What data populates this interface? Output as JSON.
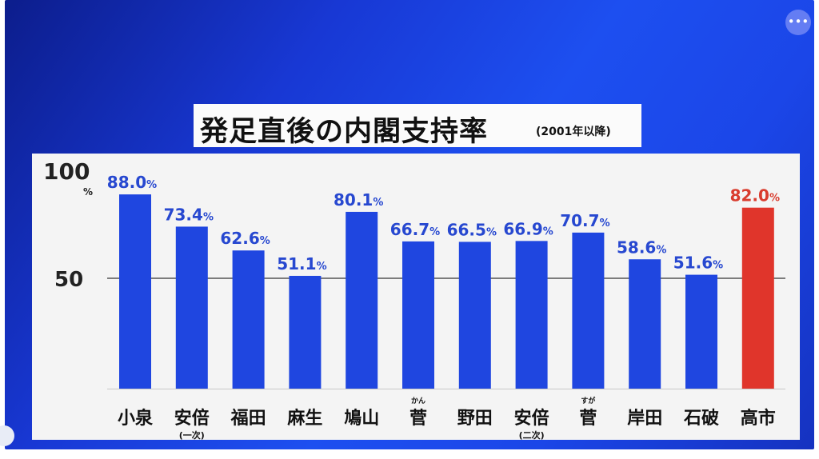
{
  "title": "発足直後の内閣支持率",
  "subtitle": "(2001年以降)",
  "menu_icon": "more-horizontal-icon",
  "colors": {
    "bar": "#1f46e0",
    "highlight_bar": "#e0352b",
    "label": "#2748d0",
    "highlight_label": "#d93c2e"
  },
  "chart_data": {
    "type": "bar",
    "title": "発足直後の内閣支持率",
    "subtitle": "(2001年以降)",
    "ylabel": "%",
    "ylim": [
      0,
      100
    ],
    "yticks": [
      50,
      100
    ],
    "ytick_labels": [
      "50",
      "100"
    ],
    "unit": "%",
    "grid": "horizontal line at 50",
    "categories": [
      "小泉",
      "安倍",
      "福田",
      "麻生",
      "鳩山",
      "菅",
      "野田",
      "安倍",
      "菅",
      "岸田",
      "石破",
      "高市"
    ],
    "category_notes": [
      "",
      "(一次)",
      "",
      "",
      "",
      "かん",
      "",
      "(二次)",
      "すが",
      "",
      "",
      ""
    ],
    "values": [
      88.0,
      73.4,
      62.6,
      51.1,
      80.1,
      66.7,
      66.5,
      66.9,
      70.7,
      58.6,
      51.6,
      82.0
    ],
    "value_labels": [
      "88.0",
      "73.4",
      "62.6",
      "51.1",
      "80.1",
      "66.7",
      "66.5",
      "66.9",
      "70.7",
      "58.6",
      "51.6",
      "82.0"
    ],
    "highlight": [
      "高市"
    ]
  }
}
